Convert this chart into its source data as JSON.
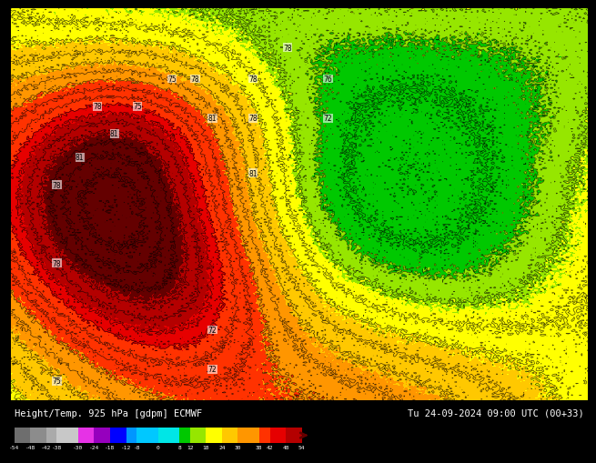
{
  "title_left": "Height/Temp. 925 hPa [gdpm] ECMWF",
  "title_right": "Tu 24-09-2024 09:00 UTC (00+33)",
  "colors": [
    "#6e6e6e",
    "#8c8c8c",
    "#aaaaaa",
    "#c8c8c8",
    "#e632e6",
    "#9600be",
    "#0000ff",
    "#0096ff",
    "#00c8ff",
    "#00e6e6",
    "#00c800",
    "#96e600",
    "#ffff00",
    "#ffc800",
    "#ff9600",
    "#ff3200",
    "#e60000",
    "#b40000",
    "#640000"
  ],
  "boundaries": [
    -60,
    -54,
    -48,
    -42,
    -38,
    -30,
    -24,
    -18,
    -12,
    -8,
    0,
    8,
    12,
    18,
    24,
    30,
    38,
    42,
    48,
    54
  ],
  "label_values": [
    -54,
    -48,
    -42,
    -38,
    -30,
    -24,
    -18,
    -12,
    -8,
    0,
    8,
    12,
    18,
    24,
    30,
    38,
    42,
    48,
    54
  ],
  "map_bg": "#f5c842",
  "figure_bg": "#000000"
}
